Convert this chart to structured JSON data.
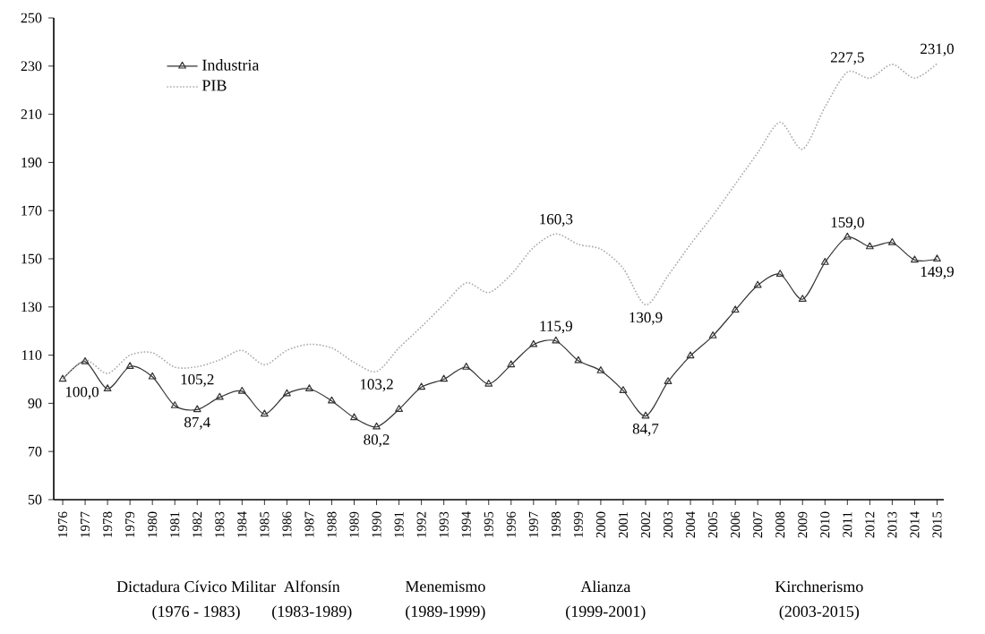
{
  "chart_data": {
    "type": "line",
    "categories": [
      "1976",
      "1977",
      "1978",
      "1979",
      "1980",
      "1981",
      "1982",
      "1983",
      "1984",
      "1985",
      "1986",
      "1987",
      "1988",
      "1989",
      "1990",
      "1991",
      "1992",
      "1993",
      "1994",
      "1995",
      "1996",
      "1997",
      "1998",
      "1999",
      "2000",
      "2001",
      "2002",
      "2003",
      "2004",
      "2005",
      "2006",
      "2007",
      "2008",
      "2009",
      "2010",
      "2011",
      "2012",
      "2013",
      "2014",
      "2015"
    ],
    "series": [
      {
        "name": "Industria",
        "color": "#333333",
        "marker": "triangle",
        "line_style": "solid",
        "values": [
          100.0,
          107.3,
          96,
          105.3,
          101,
          89,
          87.4,
          92.5,
          95,
          85.5,
          94,
          96,
          91,
          84,
          80.2,
          87.5,
          96.7,
          100,
          105,
          98,
          106,
          114.4,
          115.9,
          107.7,
          103.5,
          95.3,
          84.7,
          99,
          109.7,
          118,
          128.7,
          139,
          143.6,
          133.2,
          148.5,
          159.0,
          155,
          156.7,
          149.5,
          149.9
        ]
      },
      {
        "name": "PIB",
        "color": "#aaaaaa",
        "marker": "none",
        "line_style": "dotted",
        "values": [
          100.0,
          108,
          102.4,
          110,
          111,
          105,
          105.2,
          108,
          112,
          106,
          112,
          114.5,
          113,
          107,
          103.2,
          113,
          121.8,
          131,
          140,
          136,
          143.5,
          154.7,
          160.3,
          156,
          154,
          146,
          130.9,
          143,
          156,
          168,
          181,
          194,
          206.7,
          195.5,
          213,
          227.5,
          225,
          230.7,
          225,
          231.0
        ]
      }
    ],
    "ylim": [
      50,
      250
    ],
    "yticks": [
      50,
      70,
      90,
      110,
      130,
      150,
      170,
      190,
      210,
      230,
      250
    ],
    "legend": "top left",
    "grid": false,
    "annotations": [
      {
        "text": "100,0",
        "x": "1976",
        "y": 100.0
      },
      {
        "text": "87,4",
        "x": "1982",
        "y": 87.4
      },
      {
        "text": "105,2",
        "x": "1982",
        "y": 105.2
      },
      {
        "text": "103,2",
        "x": "1990",
        "y": 103.2
      },
      {
        "text": "80,2",
        "x": "1990",
        "y": 80.2
      },
      {
        "text": "115,9",
        "x": "1998",
        "y": 115.9
      },
      {
        "text": "160,3",
        "x": "1998",
        "y": 160.3
      },
      {
        "text": "130,9",
        "x": "2002",
        "y": 130.9
      },
      {
        "text": "84,7",
        "x": "2002",
        "y": 84.7
      },
      {
        "text": "159,0",
        "x": "2011",
        "y": 159.0
      },
      {
        "text": "227,5",
        "x": "2011",
        "y": 227.5
      },
      {
        "text": "231,0",
        "x": "2015",
        "y": 231.0
      },
      {
        "text": "149,9",
        "x": "2015",
        "y": 149.9
      },
      "Dictadura Cívico Militar",
      "(1976 - 1983)",
      "Alfonsín",
      "(1983-1989)",
      "Menemismo",
      "(1989-1999)",
      "Alianza",
      "(1999-2001)",
      "Kirchnerismo",
      "(2003-2015)"
    ]
  }
}
